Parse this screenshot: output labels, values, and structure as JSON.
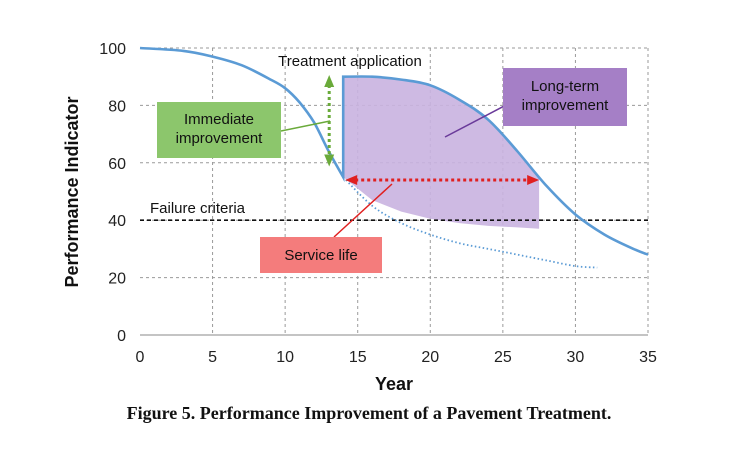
{
  "chart_data": {
    "type": "line",
    "xlabel": "Year",
    "ylabel": "Performance Indicator",
    "xlim": [
      0,
      35
    ],
    "ylim": [
      0,
      100
    ],
    "x_ticks": [
      0,
      5,
      10,
      15,
      20,
      25,
      30,
      35
    ],
    "y_ticks": [
      0,
      20,
      40,
      60,
      80,
      100
    ],
    "grid": "dashed",
    "series": [
      {
        "role": "performance-with-treatment",
        "color": "#5b9bd5",
        "style": "solid",
        "points": [
          [
            0,
            100
          ],
          [
            3,
            99
          ],
          [
            5,
            97
          ],
          [
            7,
            94
          ],
          [
            9,
            89
          ],
          [
            10,
            86
          ],
          [
            11,
            81
          ],
          [
            12,
            74
          ],
          [
            13,
            64
          ],
          [
            14,
            55
          ],
          [
            14,
            90
          ],
          [
            16,
            90
          ],
          [
            18,
            89
          ],
          [
            20,
            87
          ],
          [
            22,
            82
          ],
          [
            24,
            75
          ],
          [
            26,
            64
          ],
          [
            28,
            52
          ],
          [
            30,
            42
          ],
          [
            32,
            35
          ],
          [
            34,
            30
          ],
          [
            35,
            28
          ]
        ]
      },
      {
        "role": "performance-without-treatment",
        "color": "#5b9bd5",
        "style": "dotted",
        "points": [
          [
            14,
            55
          ],
          [
            16,
            45
          ],
          [
            18,
            39
          ],
          [
            20,
            35
          ],
          [
            22,
            32
          ],
          [
            24,
            30
          ],
          [
            26,
            28
          ],
          [
            28,
            26
          ],
          [
            30,
            24
          ],
          [
            31.5,
            23.5
          ]
        ]
      }
    ],
    "failure_criteria": {
      "y": 40,
      "label": "Failure criteria"
    },
    "treatment_year": 14,
    "long_term_area": {
      "color": "#c9b3e0",
      "x_end": 27.5,
      "upper_points": [
        [
          14,
          90
        ],
        [
          16,
          90
        ],
        [
          18,
          89
        ],
        [
          20,
          87
        ],
        [
          22,
          82
        ],
        [
          24,
          75
        ],
        [
          26,
          64
        ],
        [
          27.5,
          55
        ],
        [
          27.5,
          37
        ]
      ],
      "lower_points": [
        [
          27.5,
          37
        ],
        [
          26,
          37.5
        ],
        [
          24,
          38
        ],
        [
          22,
          39
        ],
        [
          20,
          40.5
        ],
        [
          18,
          43
        ],
        [
          16,
          47
        ],
        [
          14,
          55
        ]
      ]
    },
    "annotations": {
      "treatment_application": "Treatment application",
      "immediate_improvement": "Immediate improvement",
      "long_term_improvement": "Long-term improvement",
      "service_life": "Service life"
    },
    "annotation_colors": {
      "immediate": "#8cc66c",
      "long_term": "#a57fc6",
      "service_life": "#f47c7c",
      "service_life_arrow": "#e02020",
      "immediate_arrow": "#6aaa3a"
    }
  },
  "caption": "Figure 5. Performance Improvement of a Pavement Treatment."
}
